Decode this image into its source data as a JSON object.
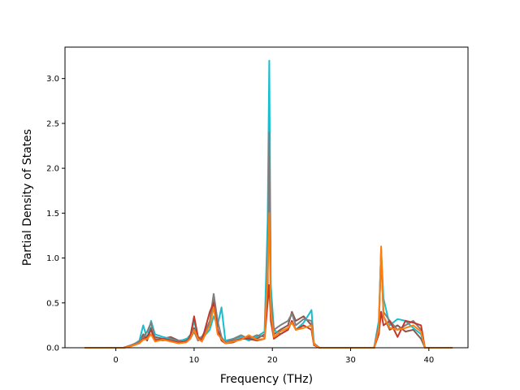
{
  "chart_data": {
    "type": "line",
    "title": "",
    "xlabel": "Frequency (THz)",
    "ylabel": "Partial Density of States",
    "xlim": [
      -6.5,
      45
    ],
    "ylim": [
      0,
      3.35
    ],
    "xticks": [
      0,
      10,
      20,
      30,
      40
    ],
    "xtick_labels": [
      "0",
      "10",
      "20",
      "30",
      "40"
    ],
    "yticks": [
      0.0,
      0.5,
      1.0,
      1.5,
      2.0,
      2.5,
      3.0
    ],
    "ytick_labels": [
      "0.0",
      "0.5",
      "1.0",
      "1.5",
      "2.0",
      "2.5",
      "3.0"
    ],
    "grid": false,
    "legend": "none",
    "series": [
      {
        "color": "#8c564b",
        "x": [
          -4,
          1,
          2,
          3,
          3.5,
          4,
          4.5,
          5,
          6,
          7,
          8,
          9,
          9.5,
          10,
          10.5,
          11,
          12,
          12.5,
          13,
          13.5,
          14,
          15,
          16,
          17,
          18,
          19,
          19.4,
          19.6,
          19.8,
          20.2,
          21,
          22,
          22.5,
          23,
          24,
          25,
          25.3,
          26,
          33,
          33.6,
          33.9,
          34.2,
          35,
          36,
          37,
          38,
          39,
          39.5,
          43
        ],
        "y": [
          0,
          0,
          0.03,
          0.06,
          0.15,
          0.08,
          0.22,
          0.12,
          0.1,
          0.12,
          0.08,
          0.09,
          0.14,
          0.22,
          0.1,
          0.12,
          0.28,
          0.55,
          0.2,
          0.1,
          0.05,
          0.08,
          0.1,
          0.12,
          0.1,
          0.15,
          0.6,
          2.45,
          0.5,
          0.15,
          0.2,
          0.25,
          0.4,
          0.3,
          0.35,
          0.25,
          0.05,
          0,
          0,
          0.2,
          1.1,
          0.35,
          0.2,
          0.25,
          0.18,
          0.2,
          0.1,
          0,
          0
        ]
      },
      {
        "color": "#17becf",
        "x": [
          -4,
          1,
          2,
          3,
          3.5,
          4,
          4.5,
          5,
          6,
          7,
          8,
          9,
          9.5,
          10,
          10.5,
          11,
          12,
          12.5,
          13,
          13.5,
          14,
          15,
          16,
          17,
          18,
          19,
          19.4,
          19.6,
          19.8,
          20.2,
          21,
          22,
          22.5,
          23,
          24,
          25,
          25.3,
          26,
          33,
          33.6,
          33.9,
          34.2,
          35,
          36,
          37,
          38,
          39,
          39.5,
          43
        ],
        "y": [
          0,
          0,
          0.02,
          0.08,
          0.25,
          0.1,
          0.3,
          0.15,
          0.12,
          0.1,
          0.07,
          0.1,
          0.12,
          0.3,
          0.12,
          0.1,
          0.2,
          0.35,
          0.25,
          0.45,
          0.08,
          0.1,
          0.12,
          0.08,
          0.12,
          0.18,
          1.4,
          3.2,
          0.7,
          0.2,
          0.15,
          0.2,
          0.3,
          0.2,
          0.28,
          0.42,
          0.05,
          0,
          0,
          0.3,
          1.1,
          0.55,
          0.25,
          0.32,
          0.3,
          0.22,
          0.15,
          0,
          0
        ]
      },
      {
        "color": "#7f7f7f",
        "x": [
          -4,
          1,
          2,
          3,
          3.5,
          4,
          4.5,
          5,
          6,
          7,
          8,
          9,
          9.5,
          10,
          10.5,
          11,
          12,
          12.5,
          13,
          13.5,
          14,
          15,
          16,
          17,
          18,
          19,
          19.4,
          19.6,
          19.8,
          20.2,
          21,
          22,
          22.5,
          23,
          24,
          25,
          25.3,
          26,
          33,
          33.6,
          33.9,
          34.2,
          35,
          36,
          37,
          38,
          39,
          39.5,
          43
        ],
        "y": [
          0,
          0,
          0.03,
          0.07,
          0.12,
          0.18,
          0.28,
          0.1,
          0.08,
          0.1,
          0.06,
          0.08,
          0.1,
          0.18,
          0.08,
          0.1,
          0.3,
          0.6,
          0.3,
          0.12,
          0.06,
          0.1,
          0.14,
          0.1,
          0.14,
          0.12,
          0.9,
          2.4,
          0.5,
          0.2,
          0.25,
          0.3,
          0.38,
          0.25,
          0.32,
          0.3,
          0.05,
          0,
          0,
          0.25,
          1.0,
          0.4,
          0.3,
          0.2,
          0.25,
          0.3,
          0.2,
          0,
          0
        ]
      },
      {
        "color": "#c0392b",
        "x": [
          -4,
          1,
          2,
          3,
          3.5,
          4,
          4.5,
          5,
          6,
          7,
          8,
          9,
          9.5,
          10,
          10.5,
          11,
          12,
          12.5,
          13,
          13.5,
          14,
          15,
          16,
          17,
          18,
          19,
          19.4,
          19.6,
          19.8,
          20.2,
          21,
          22,
          22.5,
          23,
          24,
          25,
          25.3,
          26,
          33,
          33.6,
          33.9,
          34.2,
          35,
          36,
          37,
          38,
          39,
          39.5,
          43
        ],
        "y": [
          0,
          0,
          0.02,
          0.05,
          0.1,
          0.12,
          0.2,
          0.08,
          0.1,
          0.08,
          0.06,
          0.07,
          0.12,
          0.35,
          0.12,
          0.08,
          0.4,
          0.5,
          0.2,
          0.08,
          0.05,
          0.06,
          0.1,
          0.1,
          0.08,
          0.1,
          0.5,
          0.7,
          0.3,
          0.1,
          0.15,
          0.2,
          0.3,
          0.2,
          0.25,
          0.2,
          0.03,
          0,
          0,
          0.15,
          0.4,
          0.25,
          0.3,
          0.12,
          0.3,
          0.28,
          0.25,
          0,
          0
        ]
      },
      {
        "color": "#ff7f0e",
        "x": [
          -4,
          1,
          2,
          3,
          3.5,
          4,
          4.5,
          5,
          6,
          7,
          8,
          9,
          9.5,
          10,
          10.5,
          11,
          12,
          12.5,
          13,
          13.5,
          14,
          15,
          16,
          17,
          18,
          19,
          19.4,
          19.6,
          19.8,
          20.2,
          21,
          22,
          22.5,
          23,
          24,
          25,
          25.3,
          26,
          33,
          33.6,
          33.9,
          34.2,
          35,
          36,
          37,
          38,
          39,
          39.5,
          43
        ],
        "y": [
          0,
          0,
          0.02,
          0.05,
          0.09,
          0.1,
          0.15,
          0.07,
          0.09,
          0.07,
          0.05,
          0.06,
          0.1,
          0.2,
          0.1,
          0.07,
          0.25,
          0.45,
          0.15,
          0.1,
          0.05,
          0.07,
          0.09,
          0.14,
          0.09,
          0.1,
          0.8,
          1.5,
          0.4,
          0.12,
          0.18,
          0.22,
          0.28,
          0.2,
          0.22,
          0.25,
          0.04,
          0,
          0,
          0.2,
          1.13,
          0.35,
          0.22,
          0.2,
          0.22,
          0.25,
          0.18,
          0,
          0
        ]
      }
    ]
  }
}
